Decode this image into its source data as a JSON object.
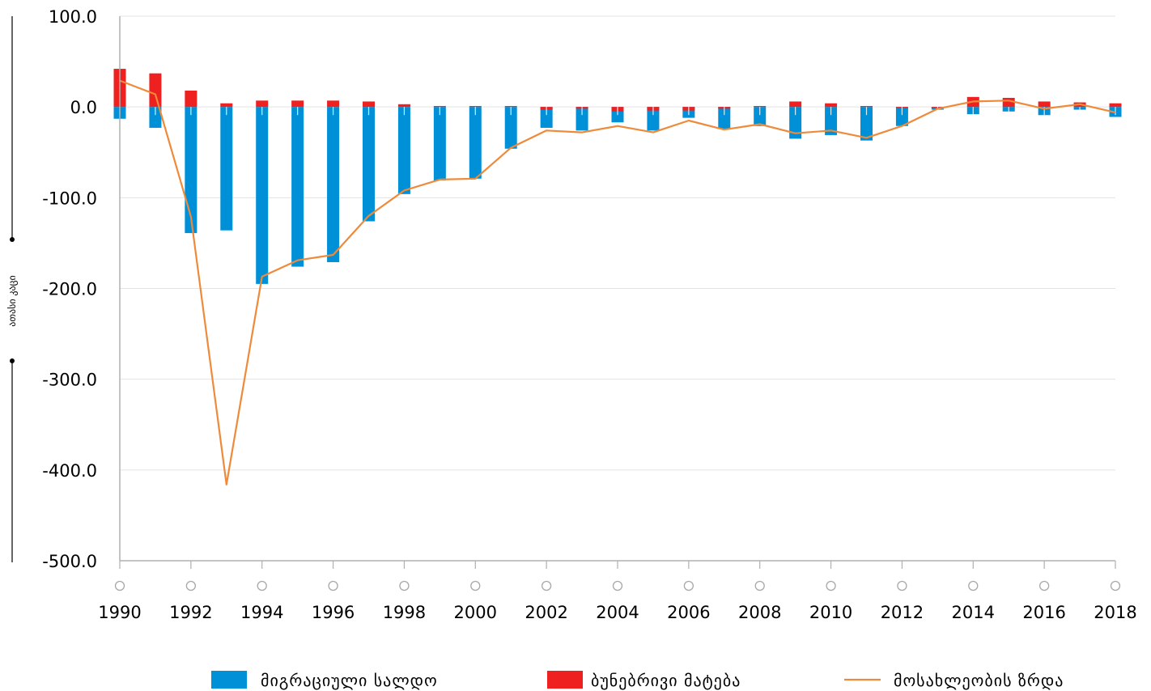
{
  "chart_data": {
    "type": "bar",
    "title": "",
    "xlabel": "",
    "ylabel": "ათასი კაცი",
    "ylim": [
      -500,
      100
    ],
    "yticks": [
      "100.0",
      "0.0",
      "-100.0",
      "-200.0",
      "-300.0",
      "-400.0",
      "-500.0"
    ],
    "ytick_values": [
      100,
      0,
      -100,
      -200,
      -300,
      -400,
      -500
    ],
    "xtick_labels": [
      "1990",
      "1992",
      "1994",
      "1996",
      "1998",
      "2000",
      "2002",
      "2004",
      "2006",
      "2008",
      "2010",
      "2012",
      "2014",
      "2016",
      "2018"
    ],
    "grid": true,
    "legend_position": "bottom",
    "x": [
      1990,
      1991,
      1992,
      1993,
      1994,
      1995,
      1996,
      1997,
      1998,
      1999,
      2000,
      2001,
      2002,
      2003,
      2004,
      2005,
      2006,
      2007,
      2008,
      2009,
      2010,
      2011,
      2012,
      2013,
      2014,
      2015,
      2016,
      2017,
      2018
    ],
    "series": [
      {
        "name": "მიგრაციული სალდო",
        "kind": "bar",
        "color": "#0090d8",
        "values": [
          -13,
          -23,
          -139,
          -136,
          -195,
          -176,
          -171,
          -126,
          -96,
          -81,
          -79,
          -46,
          -23,
          -26,
          -17,
          -26,
          -12,
          -24,
          -21,
          -35,
          -31,
          -37,
          -21,
          -3,
          -8,
          -5,
          -9,
          -3,
          -11
        ]
      },
      {
        "name": "ბუნებრივი მატება",
        "kind": "bar",
        "color": "#ee2020",
        "values": [
          42,
          37,
          18,
          4,
          7,
          7,
          7,
          6,
          3,
          1,
          1,
          1,
          -3,
          -2,
          -5,
          -4,
          -4,
          -2,
          1,
          6,
          4,
          1,
          -1,
          -1,
          11,
          10,
          6,
          5,
          4
        ]
      },
      {
        "name": "მოსახლეობის ზრდა",
        "kind": "line",
        "color": "#ee8a3a",
        "values": [
          29,
          14,
          -121,
          -416,
          -187,
          -169,
          -163,
          -120,
          -92,
          -80,
          -79,
          -45,
          -26,
          -28,
          -21,
          -28,
          -15,
          -25,
          -19,
          -29,
          -26,
          -34,
          -21,
          -2,
          6,
          7,
          -2,
          3,
          -6
        ]
      }
    ]
  }
}
